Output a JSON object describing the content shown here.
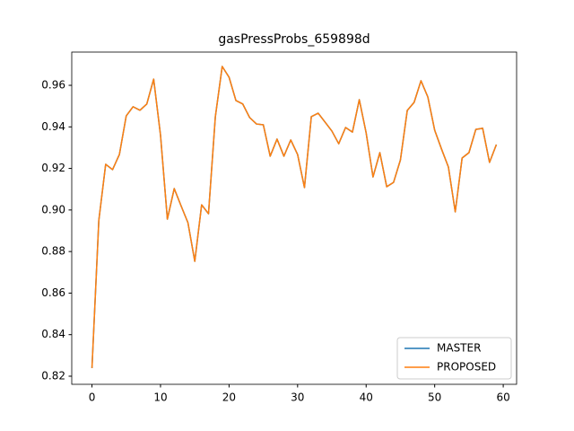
{
  "chart_data": {
    "type": "line",
    "title": "gasPressProbs_659898d",
    "x": [
      0,
      1,
      2,
      3,
      4,
      5,
      6,
      7,
      8,
      9,
      10,
      11,
      12,
      13,
      14,
      15,
      16,
      17,
      18,
      19,
      20,
      21,
      22,
      23,
      24,
      25,
      26,
      27,
      28,
      29,
      30,
      31,
      32,
      33,
      34,
      35,
      36,
      37,
      38,
      39,
      40,
      41,
      42,
      43,
      44,
      45,
      46,
      47,
      48,
      49,
      50,
      51,
      52,
      53,
      54,
      55,
      56,
      57,
      58,
      59
    ],
    "series": [
      {
        "name": "MASTER",
        "color": "#1f77b4",
        "values": [
          0.8239,
          0.895,
          0.922,
          0.9194,
          0.9267,
          0.9453,
          0.9497,
          0.948,
          0.951,
          0.963,
          0.936,
          0.8956,
          0.9103,
          0.902,
          0.8939,
          0.8753,
          0.9025,
          0.8982,
          0.9449,
          0.9691,
          0.9639,
          0.9527,
          0.951,
          0.9445,
          0.9414,
          0.941,
          0.9259,
          0.9341,
          0.9259,
          0.9337,
          0.9267,
          0.9108,
          0.9449,
          0.9466,
          0.9423,
          0.938,
          0.9319,
          0.9397,
          0.9375,
          0.9531,
          0.9371,
          0.9159,
          0.9276,
          0.9112,
          0.9133,
          0.9241,
          0.9479,
          0.9518,
          0.9622,
          0.9544,
          0.9384,
          0.9293,
          0.9207,
          0.8991,
          0.925,
          0.9276,
          0.9388,
          0.9393,
          0.9229,
          0.9315
        ]
      },
      {
        "name": "PROPOSED",
        "color": "#ff7f0e",
        "values": [
          0.8239,
          0.895,
          0.922,
          0.9194,
          0.9267,
          0.9453,
          0.9497,
          0.948,
          0.951,
          0.963,
          0.936,
          0.8956,
          0.9103,
          0.902,
          0.8939,
          0.8753,
          0.9025,
          0.8982,
          0.9449,
          0.9691,
          0.9639,
          0.9527,
          0.951,
          0.9445,
          0.9414,
          0.941,
          0.9259,
          0.9341,
          0.9259,
          0.9337,
          0.9267,
          0.9108,
          0.9449,
          0.9466,
          0.9423,
          0.938,
          0.9319,
          0.9397,
          0.9375,
          0.9531,
          0.9371,
          0.9159,
          0.9276,
          0.9112,
          0.9133,
          0.9241,
          0.9479,
          0.9518,
          0.9622,
          0.9544,
          0.9384,
          0.9293,
          0.9207,
          0.8991,
          0.925,
          0.9276,
          0.9388,
          0.9393,
          0.9229,
          0.9315
        ]
      }
    ],
    "xlim": [
      -2.95,
      61.95
    ],
    "xticks": [
      0,
      10,
      20,
      30,
      40,
      50,
      60
    ],
    "ylim": [
      0.8161,
      0.976
    ],
    "yticks": [
      0.82,
      0.84,
      0.86,
      0.88,
      {
        "value": 0.9,
        "label": "0.90"
      },
      0.92,
      0.94,
      0.96
    ],
    "grid": false,
    "legend": "lower right"
  }
}
